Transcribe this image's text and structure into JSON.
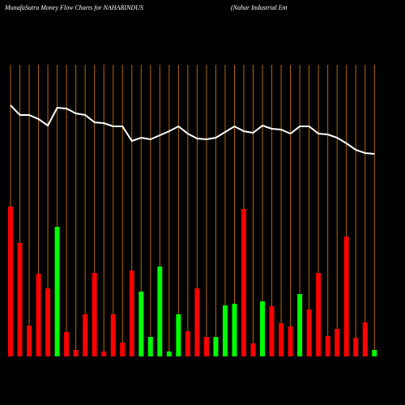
{
  "chart_data": {
    "type": "bar",
    "title": "MunafaSutra  Money Flow  Charts for NAHARINDUS",
    "subtitle": "(Nahar Industrial Ent",
    "ylim": [
      0,
      360
    ],
    "series": [
      {
        "name": "Price",
        "type": "line",
        "color": "#ffffff",
        "values": [
          310,
          298,
          298,
          293,
          285,
          307,
          306,
          300,
          298,
          289,
          288,
          284,
          284,
          266,
          270,
          268,
          273,
          278,
          284,
          275,
          269,
          268,
          270,
          277,
          284,
          278,
          276,
          285,
          281,
          280,
          275,
          284,
          284,
          275,
          274,
          270,
          263,
          255,
          251,
          250
        ]
      },
      {
        "name": "Money Flow",
        "type": "bar",
        "values": [
          185,
          140,
          38,
          102,
          84,
          160,
          30,
          8,
          52,
          103,
          6,
          52,
          17,
          106,
          80,
          24,
          111,
          6,
          52,
          31,
          84,
          24,
          24,
          63,
          65,
          182,
          16,
          68,
          62,
          41,
          37,
          77,
          58,
          103,
          25,
          34,
          148,
          23,
          42,
          8
        ],
        "colors": [
          "#ff0000",
          "#ff0000",
          "#ff0000",
          "#ff0000",
          "#ff0000",
          "#00ff00",
          "#ff0000",
          "#ff0000",
          "#ff0000",
          "#ff0000",
          "#ff0000",
          "#ff0000",
          "#ff0000",
          "#ff0000",
          "#00ff00",
          "#00ff00",
          "#00ff00",
          "#00ff00",
          "#00ff00",
          "#ff0000",
          "#ff0000",
          "#ff0000",
          "#00ff00",
          "#00ff00",
          "#00ff00",
          "#ff0000",
          "#ff0000",
          "#00ff00",
          "#ff0000",
          "#ff0000",
          "#ff0000",
          "#00ff00",
          "#ff0000",
          "#ff0000",
          "#ff0000",
          "#ff0000",
          "#ff0000",
          "#ff0000",
          "#ff0000",
          "#00ff00"
        ]
      }
    ]
  }
}
